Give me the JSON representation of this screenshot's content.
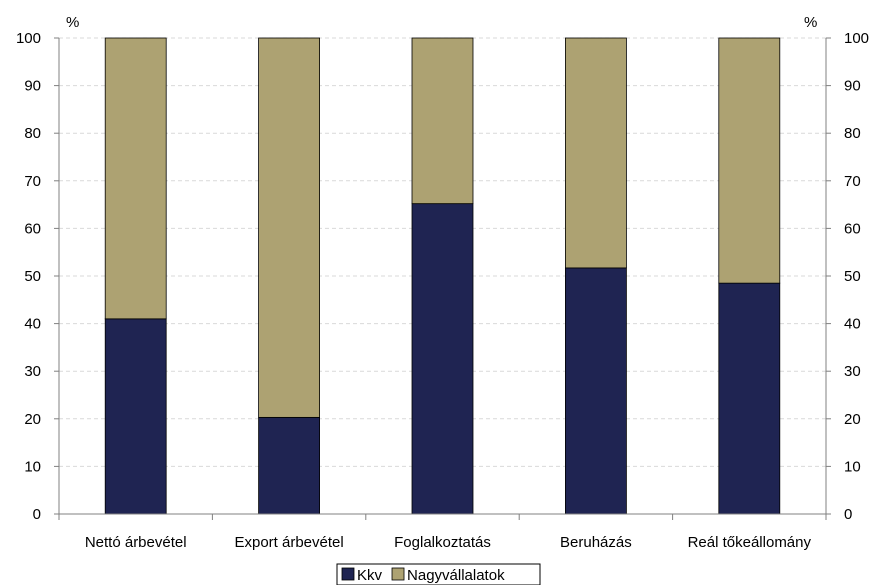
{
  "chart_data": {
    "type": "bar",
    "stacked": true,
    "categories": [
      "Nettó árbevétel",
      "Export árbevétel",
      "Foglalkoztatás",
      "Beruházás",
      "Reál tőkeállomány"
    ],
    "series": [
      {
        "name": "Kkv",
        "values": [
          41,
          20.3,
          65.2,
          51.7,
          48.5
        ],
        "color": "#1f2452"
      },
      {
        "name": "Nagyvállalatok",
        "values": [
          59,
          79.7,
          34.8,
          48.3,
          51.5
        ],
        "color": "#ada272"
      }
    ],
    "y_unit_left": "%",
    "y_unit_right": "%",
    "ylim": [
      0,
      100
    ],
    "yticks": [
      0,
      10,
      20,
      30,
      40,
      50,
      60,
      70,
      80,
      90,
      100
    ],
    "grid": true,
    "legend": "bottom-center",
    "secondary_y_axis": true
  }
}
